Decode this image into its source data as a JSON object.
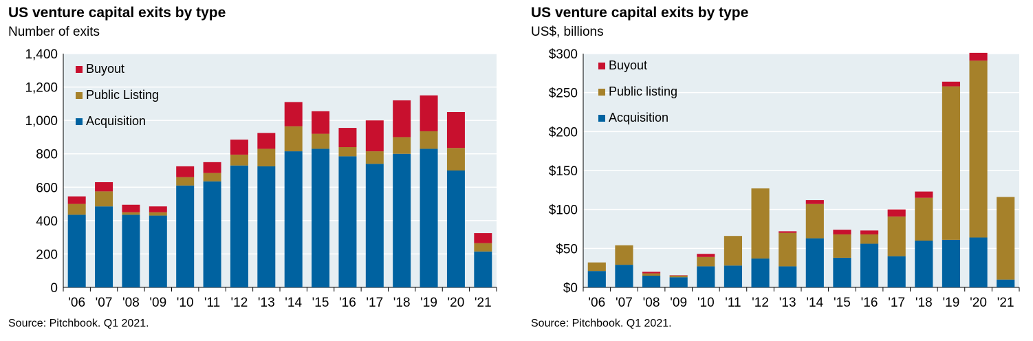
{
  "colors": {
    "plot_bg": "#e6eef2",
    "grid": "#ffffff",
    "acquisition": "#0062a0",
    "public_listing": "#a6812a",
    "buyout": "#c8102e"
  },
  "chart_data": [
    {
      "type": "bar",
      "stacked": true,
      "title": "US venture capital exits by type",
      "subtitle": "Number of exits",
      "source": "Source: Pitchbook. Q1 2021.",
      "categories": [
        "'06",
        "'07",
        "'08",
        "'09",
        "'10",
        "'11",
        "'12",
        "'13",
        "'14",
        "'15",
        "'16",
        "'17",
        "'18",
        "'19",
        "'20",
        "'21"
      ],
      "ylim": [
        0,
        1400
      ],
      "yticks": [
        0,
        200,
        400,
        600,
        800,
        1000,
        1200,
        1400
      ],
      "ytick_labels": [
        "0",
        "200",
        "400",
        "600",
        "800",
        "1,000",
        "1,200",
        "1,400"
      ],
      "grid": true,
      "legend_position": "top-left",
      "series": [
        {
          "name": "Acquisition",
          "color_key": "acquisition",
          "values": [
            435,
            485,
            435,
            430,
            610,
            635,
            730,
            725,
            815,
            830,
            785,
            740,
            800,
            830,
            700,
            215
          ]
        },
        {
          "name": "Public Listing",
          "color_key": "public_listing",
          "values": [
            65,
            90,
            15,
            20,
            50,
            50,
            65,
            105,
            150,
            90,
            55,
            75,
            100,
            105,
            135,
            50
          ]
        },
        {
          "name": "Buyout",
          "color_key": "buyout",
          "values": [
            45,
            55,
            45,
            35,
            65,
            65,
            90,
            95,
            145,
            135,
            115,
            185,
            220,
            215,
            215,
            60
          ]
        }
      ],
      "legend_order": [
        "Buyout",
        "Public Listing",
        "Acquisition"
      ]
    },
    {
      "type": "bar",
      "stacked": true,
      "title": "US venture capital exits by type",
      "subtitle": "US$, billions",
      "source": "Source: Pitchbook. Q1 2021.",
      "categories": [
        "'06",
        "'07",
        "'08",
        "'09",
        "'10",
        "'11",
        "'12",
        "'13",
        "'14",
        "'15",
        "'16",
        "'17",
        "'18",
        "'19",
        "'20",
        "'21"
      ],
      "ylim": [
        0,
        300
      ],
      "yticks": [
        0,
        50,
        100,
        150,
        200,
        250,
        300
      ],
      "ytick_labels": [
        "$0",
        "$50",
        "$100",
        "$150",
        "$200",
        "$250",
        "$300"
      ],
      "grid": true,
      "legend_position": "top-left",
      "series": [
        {
          "name": "Acquisition",
          "color_key": "acquisition",
          "values": [
            21,
            29,
            15,
            13,
            27,
            28,
            37,
            27,
            63,
            38,
            56,
            40,
            60,
            61,
            64,
            10
          ]
        },
        {
          "name": "Public listing",
          "color_key": "public_listing",
          "values": [
            11,
            25,
            3,
            2,
            12,
            38,
            90,
            43,
            44,
            30,
            12,
            51,
            55,
            197,
            227,
            106
          ]
        },
        {
          "name": "Buyout",
          "color_key": "buyout",
          "values": [
            0,
            0,
            2,
            0.5,
            4,
            0,
            0,
            2,
            5,
            6,
            5,
            9,
            8,
            6,
            10,
            0
          ]
        }
      ],
      "legend_order": [
        "Buyout",
        "Public listing",
        "Acquisition"
      ]
    }
  ]
}
